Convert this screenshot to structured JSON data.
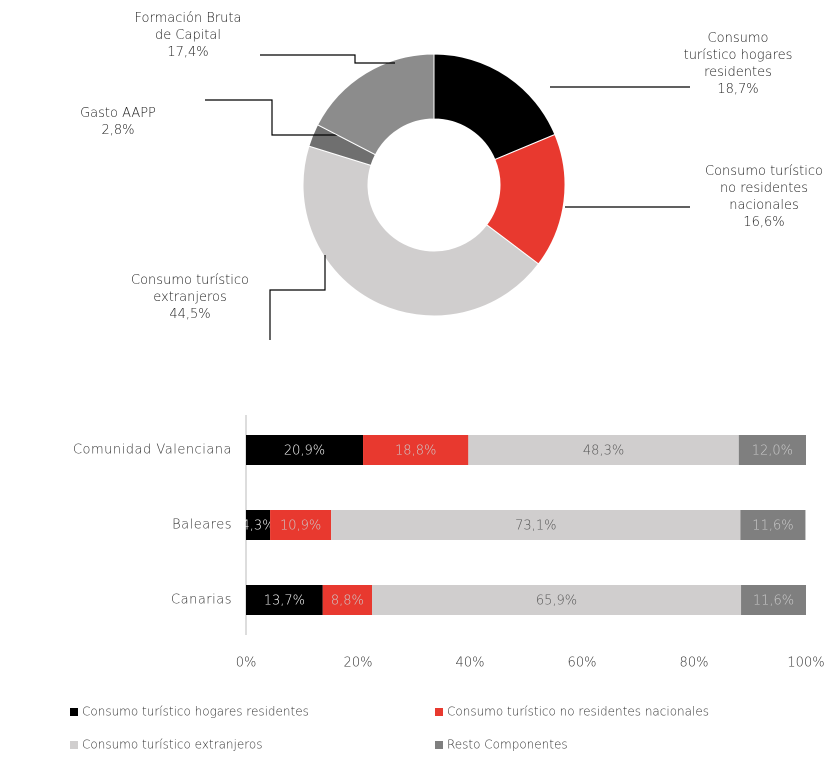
{
  "chart_data": [
    {
      "type": "donut",
      "categories": [
        "Consumo turístico hogares residentes",
        "Consumo turístico no residentes nacionales",
        "Consumo turístico extranjeros",
        "Gasto AAPP",
        "Formación Bruta de Capital"
      ],
      "values": [
        18.7,
        16.6,
        44.5,
        2.8,
        17.4
      ],
      "value_labels": [
        "18,7%",
        "16,6%",
        "44,5%",
        "2,8%",
        "17,4%"
      ],
      "colors": [
        "#000000",
        "#e8392f",
        "#d0cece",
        "#6f6f6f",
        "#8c8c8c"
      ]
    },
    {
      "type": "stacked_bar_horizontal",
      "categories": [
        "Comunidad Valenciana",
        "Baleares",
        "Canarias"
      ],
      "series": [
        {
          "name": "Consumo turístico hogares residentes",
          "color": "#000000",
          "values": [
            20.9,
            4.3,
            13.7
          ],
          "value_labels": [
            "20,9%",
            "4,3%",
            "13,7%"
          ]
        },
        {
          "name": "Consumo turístico no residentes nacionales",
          "color": "#e8392f",
          "values": [
            18.8,
            10.9,
            8.8
          ],
          "value_labels": [
            "18,8%",
            "10,9%",
            "8,8%"
          ]
        },
        {
          "name": "Consumo turístico extranjeros",
          "color": "#d0cece",
          "values": [
            48.3,
            73.1,
            65.9
          ],
          "value_labels": [
            "48,3%",
            "73,1%",
            "65,9%"
          ]
        },
        {
          "name": "Resto Componentes",
          "color": "#7f7f7f",
          "values": [
            12.0,
            11.6,
            11.6
          ],
          "value_labels": [
            "12,0%",
            "11,6%",
            "11,6%"
          ]
        }
      ],
      "xlim": [
        0,
        100
      ],
      "xticks": [
        {
          "value": 0,
          "label": "0%"
        },
        {
          "value": 20,
          "label": "20%"
        },
        {
          "value": 40,
          "label": "40%"
        },
        {
          "value": 60,
          "label": "60%"
        },
        {
          "value": 80,
          "label": "80%"
        },
        {
          "value": 100,
          "label": "100%"
        }
      ]
    }
  ]
}
